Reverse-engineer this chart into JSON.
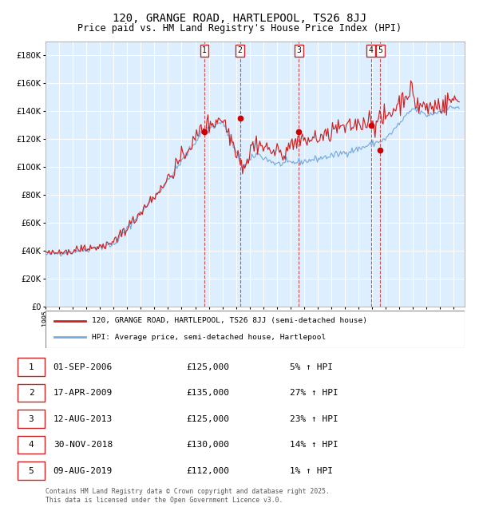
{
  "title": "120, GRANGE ROAD, HARTLEPOOL, TS26 8JJ",
  "subtitle": "Price paid vs. HM Land Registry's House Price Index (HPI)",
  "legend_line1": "120, GRANGE ROAD, HARTLEPOOL, TS26 8JJ (semi-detached house)",
  "legend_line2": "HPI: Average price, semi-detached house, Hartlepool",
  "footer_line1": "Contains HM Land Registry data © Crown copyright and database right 2025.",
  "footer_line2": "This data is licensed under the Open Government Licence v3.0.",
  "transactions": [
    {
      "num": 1,
      "date": "01-SEP-2006",
      "price": 125000,
      "pct": "5%",
      "x_year": 2006.67
    },
    {
      "num": 2,
      "date": "17-APR-2009",
      "price": 135000,
      "pct": "27%",
      "x_year": 2009.29
    },
    {
      "num": 3,
      "date": "12-AUG-2013",
      "price": 125000,
      "pct": "23%",
      "x_year": 2013.62
    },
    {
      "num": 4,
      "date": "30-NOV-2018",
      "price": 130000,
      "pct": "14%",
      "x_year": 2018.92
    },
    {
      "num": 5,
      "date": "09-AUG-2019",
      "price": 112000,
      "pct": "1%",
      "x_year": 2019.61
    }
  ],
  "ylim": [
    0,
    190000
  ],
  "xlim_start": 1995.0,
  "xlim_end": 2025.8,
  "hpi_color": "#7aaadd",
  "price_color": "#cc2222",
  "dot_color": "#cc0000",
  "bg_color": "#ddeeff",
  "grid_color": "#ffffff",
  "vline_color": "#cc3333",
  "box_color": "#cc2222",
  "title_fontsize": 10,
  "subtitle_fontsize": 8.5,
  "ytick_values": [
    0,
    20000,
    40000,
    60000,
    80000,
    100000,
    120000,
    140000,
    160000,
    180000
  ]
}
